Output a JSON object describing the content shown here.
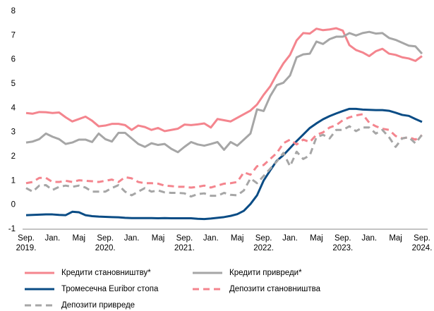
{
  "chart_data": {
    "type": "line",
    "categories": [
      "Sep. 2019.",
      null,
      null,
      null,
      "Jan.",
      null,
      null,
      null,
      "Maj",
      null,
      null,
      null,
      "Sep. 2020.",
      null,
      null,
      null,
      "Jan.",
      null,
      null,
      null,
      "Maj",
      null,
      null,
      null,
      "Sep. 2021.",
      null,
      null,
      null,
      "Jan.",
      null,
      null,
      null,
      "Maj",
      null,
      null,
      null,
      "Sep. 2022.",
      null,
      null,
      null,
      "Jan.",
      null,
      null,
      null,
      "Maj",
      null,
      null,
      null,
      "Sep. 2023.",
      null,
      null,
      null,
      "Jan.",
      null,
      null,
      null,
      "Maj",
      null,
      null,
      null,
      "Sep. 2024."
    ],
    "ylim": [
      -1,
      8
    ],
    "yticks": [
      -1,
      0,
      1,
      2,
      3,
      4,
      5,
      6,
      7,
      8
    ],
    "grid": false,
    "series": [
      {
        "name": "Кредити становништву*",
        "color": "#f4858e",
        "dash": false,
        "values": [
          3.8,
          3.77,
          3.84,
          3.83,
          3.8,
          3.82,
          3.62,
          3.45,
          3.55,
          3.65,
          3.48,
          3.25,
          3.28,
          3.35,
          3.35,
          3.3,
          3.1,
          3.28,
          3.22,
          3.1,
          3.18,
          3.05,
          3.1,
          3.15,
          3.32,
          3.3,
          3.33,
          3.37,
          3.2,
          3.55,
          3.5,
          3.45,
          3.6,
          3.75,
          3.9,
          4.15,
          4.55,
          4.9,
          5.4,
          5.85,
          6.2,
          6.8,
          7.1,
          7.08,
          7.28,
          7.22,
          7.25,
          7.3,
          7.2,
          6.6,
          6.4,
          6.3,
          6.15,
          6.35,
          6.45,
          6.25,
          6.2,
          6.1,
          6.05,
          5.95,
          6.15
        ]
      },
      {
        "name": "Кредити привреди*",
        "color": "#a6a6a6",
        "dash": false,
        "values": [
          2.58,
          2.62,
          2.72,
          2.95,
          2.82,
          2.72,
          2.52,
          2.58,
          2.7,
          2.7,
          2.6,
          2.95,
          2.72,
          2.62,
          2.98,
          2.98,
          2.75,
          2.52,
          2.4,
          2.55,
          2.48,
          2.52,
          2.32,
          2.18,
          2.4,
          2.6,
          2.5,
          2.45,
          2.52,
          2.6,
          2.28,
          2.6,
          2.45,
          2.7,
          2.95,
          3.95,
          3.88,
          4.5,
          4.95,
          5.05,
          5.35,
          6.1,
          6.22,
          6.25,
          6.75,
          6.65,
          6.85,
          6.95,
          6.95,
          7.1,
          7.0,
          7.1,
          7.15,
          7.08,
          7.1,
          6.9,
          6.82,
          6.7,
          6.58,
          6.55,
          6.25
        ]
      },
      {
        "name": "Тромесечна Euribor стопа",
        "color": "#0a4c85",
        "dash": false,
        "values": [
          -0.42,
          -0.41,
          -0.4,
          -0.39,
          -0.39,
          -0.41,
          -0.42,
          -0.28,
          -0.3,
          -0.42,
          -0.46,
          -0.48,
          -0.49,
          -0.5,
          -0.51,
          -0.53,
          -0.54,
          -0.54,
          -0.54,
          -0.54,
          -0.55,
          -0.54,
          -0.55,
          -0.55,
          -0.55,
          -0.55,
          -0.57,
          -0.58,
          -0.56,
          -0.53,
          -0.5,
          -0.45,
          -0.38,
          -0.24,
          0.04,
          0.4,
          1.01,
          1.43,
          1.83,
          2.06,
          2.35,
          2.64,
          2.91,
          3.18,
          3.37,
          3.54,
          3.67,
          3.78,
          3.88,
          3.97,
          3.97,
          3.94,
          3.93,
          3.92,
          3.92,
          3.89,
          3.81,
          3.72,
          3.68,
          3.55,
          3.43
        ]
      },
      {
        "name": "Депозити становништва",
        "color": "#f4858e",
        "dash": true,
        "values": [
          0.9,
          0.95,
          1.12,
          1.12,
          0.95,
          0.95,
          1.0,
          0.95,
          1.02,
          1.0,
          0.98,
          0.95,
          1.0,
          1.05,
          0.95,
          1.15,
          1.1,
          0.95,
          0.9,
          0.9,
          0.88,
          0.8,
          0.78,
          0.75,
          0.75,
          0.72,
          0.75,
          0.8,
          0.72,
          0.8,
          0.88,
          0.9,
          0.95,
          1.35,
          1.25,
          1.6,
          1.65,
          1.9,
          2.15,
          2.55,
          2.7,
          2.5,
          2.7,
          2.6,
          2.9,
          3.0,
          3.2,
          3.3,
          3.5,
          3.62,
          3.7,
          3.75,
          3.4,
          3.25,
          3.15,
          3.1,
          2.85,
          2.75,
          2.8,
          2.7,
          2.88
        ]
      },
      {
        "name": "Депозити привреде",
        "color": "#a6a6a6",
        "dash": true,
        "values": [
          0.7,
          0.55,
          0.8,
          0.82,
          0.62,
          0.75,
          0.8,
          0.75,
          0.8,
          0.72,
          0.55,
          0.55,
          0.55,
          0.7,
          0.82,
          0.55,
          0.4,
          0.55,
          0.7,
          0.55,
          0.6,
          0.52,
          0.5,
          0.5,
          0.48,
          0.35,
          0.45,
          0.48,
          0.38,
          0.38,
          0.5,
          0.42,
          0.4,
          0.6,
          1.1,
          0.9,
          1.2,
          1.5,
          1.8,
          2.15,
          1.6,
          2.2,
          1.9,
          2.05,
          2.8,
          2.9,
          2.75,
          3.1,
          3.1,
          3.25,
          3.05,
          3.2,
          3.2,
          2.95,
          3.1,
          2.8,
          2.4,
          2.75,
          2.8,
          2.55,
          2.9
        ]
      }
    ]
  }
}
